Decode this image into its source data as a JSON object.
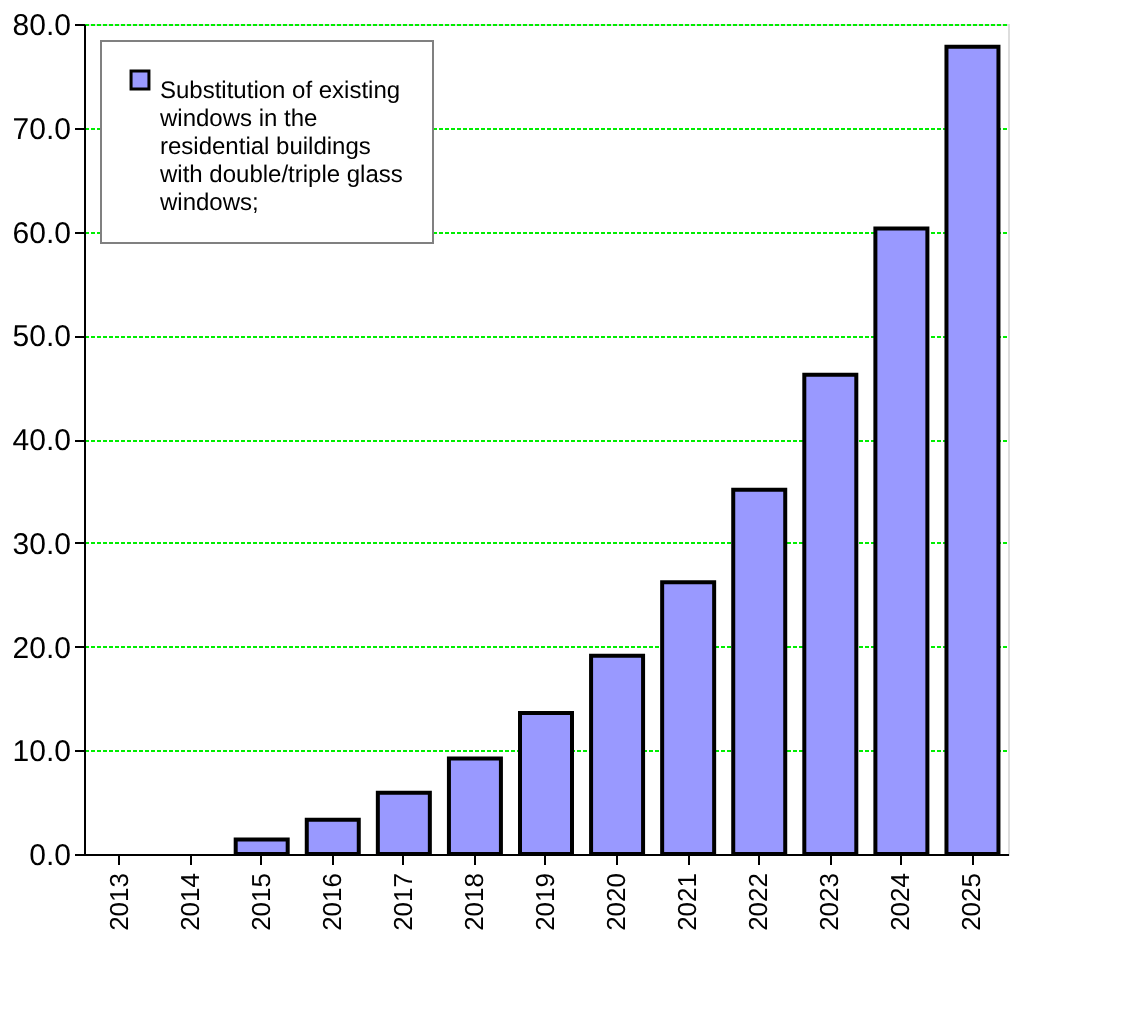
{
  "chart_data": {
    "type": "bar",
    "categories": [
      "2013",
      "2014",
      "2015",
      "2016",
      "2017",
      "2018",
      "2019",
      "2020",
      "2021",
      "2022",
      "2023",
      "2024",
      "2025"
    ],
    "series": [
      {
        "name": "Substitution of existing windows in the residential buildings with double/triple glass windows;",
        "color": "#9999ff",
        "values": [
          null,
          null,
          1.4,
          3.3,
          5.9,
          9.2,
          13.6,
          19.1,
          26.2,
          35.1,
          46.2,
          60.3,
          77.8
        ]
      }
    ],
    "ylim": [
      0,
      80
    ],
    "yticks": [
      {
        "value": 0,
        "label": "0.0"
      },
      {
        "value": 10,
        "label": "10.0"
      },
      {
        "value": 20,
        "label": "20.0"
      },
      {
        "value": 30,
        "label": "30.0"
      },
      {
        "value": 40,
        "label": "40.0"
      },
      {
        "value": 50,
        "label": "50.0"
      },
      {
        "value": 60,
        "label": "60.0"
      },
      {
        "value": 70,
        "label": "70.0"
      },
      {
        "value": 80,
        "label": "80.0"
      }
    ],
    "grid": "y",
    "legend": "top left"
  }
}
